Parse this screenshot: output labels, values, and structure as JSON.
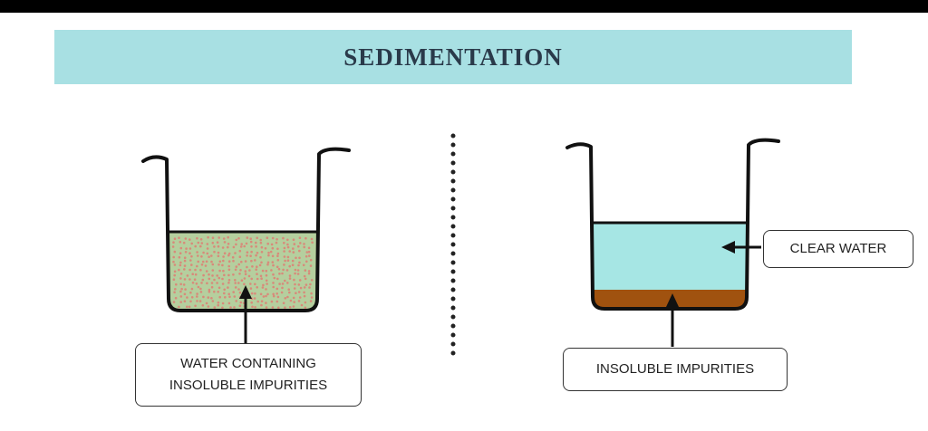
{
  "title": "SEDIMENTATION",
  "left_beaker": {
    "label_line1": "WATER CONTAINING",
    "label_line2": "INSOLUBLE IMPURITIES"
  },
  "right_beaker": {
    "label_top": "CLEAR WATER",
    "label_bottom": "INSOLUBLE IMPURITIES"
  },
  "colors": {
    "banner": "#a8e0e3",
    "muddy_water": "#b5cf9e",
    "particles": "#d88a7a",
    "clear_water": "#a6e6e4",
    "sediment": "#a0520f"
  }
}
